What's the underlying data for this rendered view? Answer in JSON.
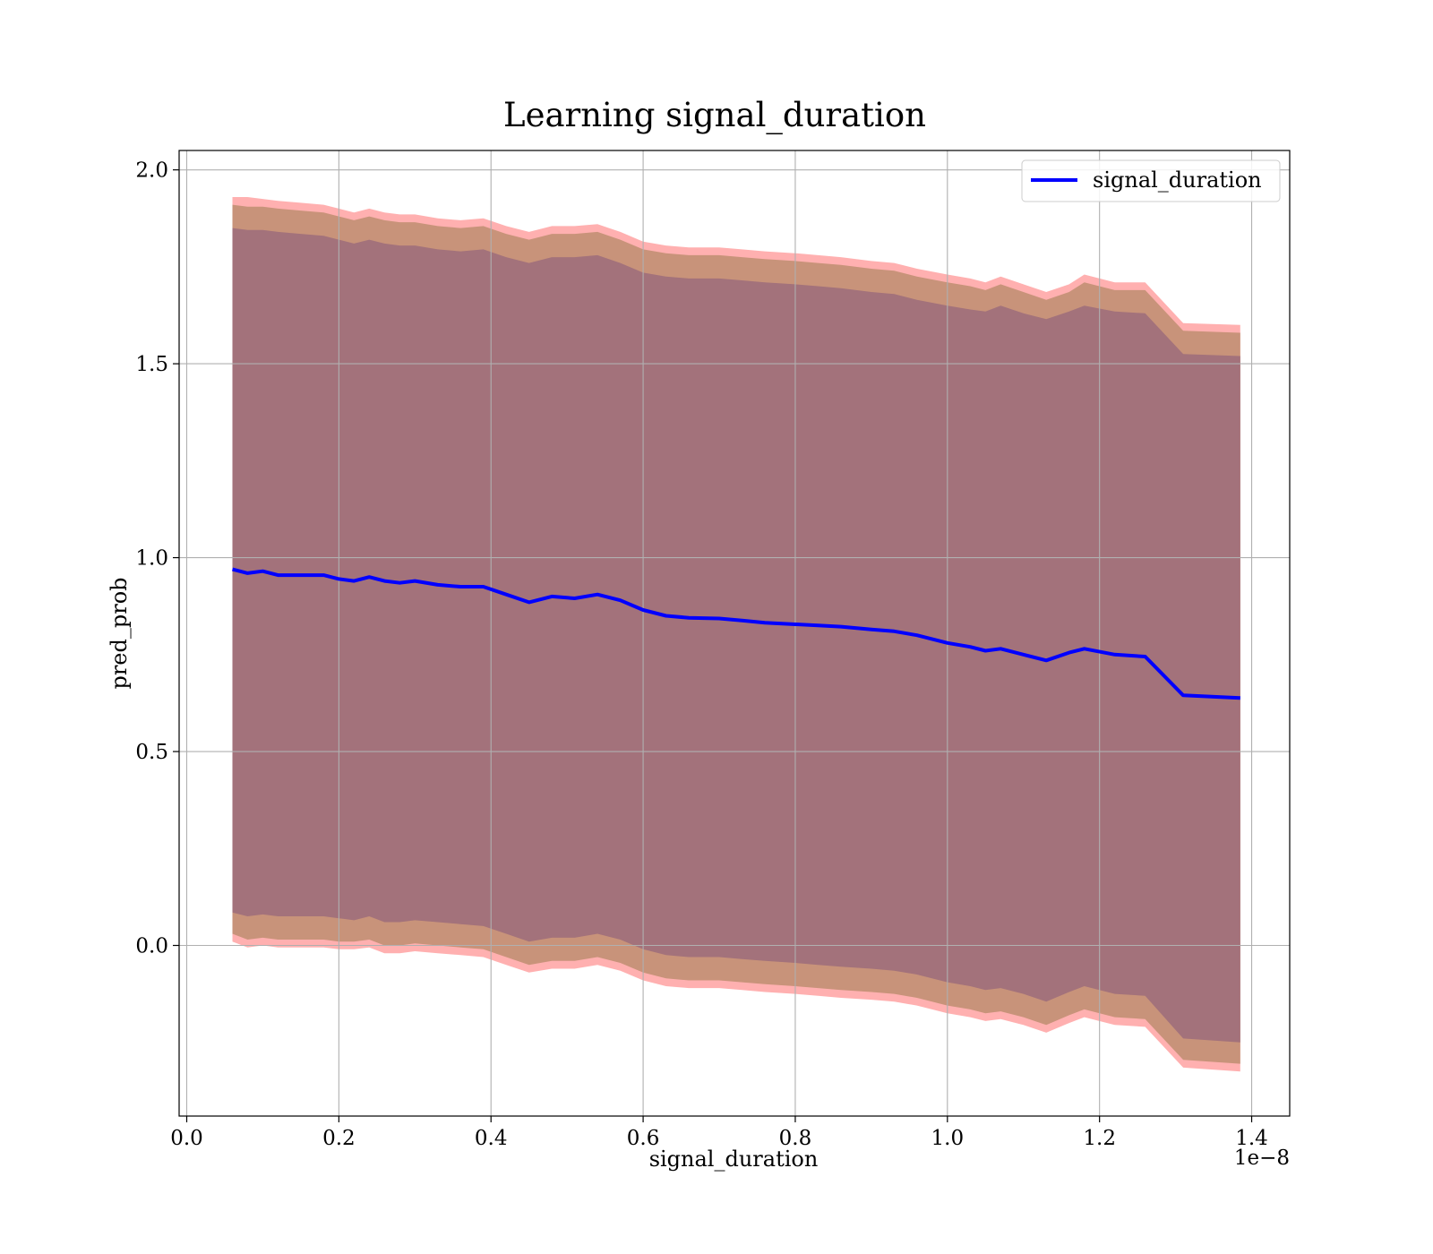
{
  "chart_data": {
    "type": "line",
    "title": "Learning signal_duration",
    "xlabel": "signal_duration",
    "ylabel": "pred_prob",
    "x_offset_label": "1e−8",
    "xlim": [
      -0.01,
      1.45
    ],
    "ylim": [
      -0.44,
      2.05
    ],
    "x_ticks": [
      0.0,
      0.2,
      0.4,
      0.6,
      0.8,
      1.0,
      1.2,
      1.4
    ],
    "x_tick_labels": [
      "0.0",
      "0.2",
      "0.4",
      "0.6",
      "0.8",
      "1.0",
      "1.2",
      "1.4"
    ],
    "y_ticks": [
      0.0,
      0.5,
      1.0,
      1.5,
      2.0
    ],
    "y_tick_labels": [
      "0.0",
      "0.5",
      "1.0",
      "1.5",
      "2.0"
    ],
    "grid": true,
    "legend_position": "top-right",
    "colors": {
      "line": "#0000ff",
      "inner_band": "#a3727b",
      "middle_band": "#c8937a",
      "outer_band": "#ffb0b0",
      "grid": "#b0b0b0"
    },
    "series": [
      {
        "name": "signal_duration",
        "x": [
          0.06,
          0.08,
          0.1,
          0.12,
          0.15,
          0.18,
          0.2,
          0.22,
          0.24,
          0.26,
          0.28,
          0.3,
          0.33,
          0.36,
          0.39,
          0.42,
          0.45,
          0.48,
          0.51,
          0.54,
          0.57,
          0.6,
          0.63,
          0.66,
          0.7,
          0.73,
          0.76,
          0.8,
          0.83,
          0.86,
          0.9,
          0.93,
          0.96,
          1.0,
          1.03,
          1.05,
          1.07,
          1.1,
          1.13,
          1.16,
          1.18,
          1.22,
          1.26,
          1.31,
          1.385
        ],
        "y": [
          0.97,
          0.96,
          0.965,
          0.955,
          0.955,
          0.955,
          0.945,
          0.94,
          0.95,
          0.94,
          0.935,
          0.94,
          0.93,
          0.925,
          0.925,
          0.905,
          0.885,
          0.9,
          0.895,
          0.905,
          0.89,
          0.865,
          0.85,
          0.845,
          0.843,
          0.838,
          0.832,
          0.828,
          0.825,
          0.822,
          0.815,
          0.81,
          0.8,
          0.78,
          0.77,
          0.76,
          0.765,
          0.75,
          0.735,
          0.755,
          0.765,
          0.75,
          0.745,
          0.645,
          0.638
        ]
      }
    ],
    "bands": [
      {
        "level": "outer",
        "upper": [
          1.93,
          1.93,
          1.925,
          1.92,
          1.915,
          1.91,
          1.9,
          1.89,
          1.9,
          1.89,
          1.885,
          1.885,
          1.875,
          1.87,
          1.875,
          1.855,
          1.84,
          1.855,
          1.855,
          1.86,
          1.84,
          1.815,
          1.805,
          1.8,
          1.8,
          1.795,
          1.79,
          1.785,
          1.78,
          1.775,
          1.765,
          1.76,
          1.745,
          1.73,
          1.72,
          1.71,
          1.725,
          1.705,
          1.685,
          1.705,
          1.73,
          1.71,
          1.71,
          1.605,
          1.6
        ],
        "lower": [
          0.01,
          -0.005,
          0.0,
          -0.005,
          -0.005,
          -0.005,
          -0.01,
          -0.01,
          -0.005,
          -0.02,
          -0.02,
          -0.015,
          -0.02,
          -0.025,
          -0.03,
          -0.05,
          -0.07,
          -0.06,
          -0.06,
          -0.05,
          -0.065,
          -0.09,
          -0.105,
          -0.11,
          -0.11,
          -0.115,
          -0.12,
          -0.125,
          -0.13,
          -0.135,
          -0.14,
          -0.145,
          -0.155,
          -0.175,
          -0.185,
          -0.195,
          -0.19,
          -0.205,
          -0.225,
          -0.2,
          -0.185,
          -0.205,
          -0.21,
          -0.315,
          -0.325
        ]
      },
      {
        "level": "middle",
        "upper": [
          1.91,
          1.905,
          1.905,
          1.9,
          1.895,
          1.89,
          1.88,
          1.87,
          1.88,
          1.87,
          1.865,
          1.865,
          1.855,
          1.85,
          1.855,
          1.835,
          1.82,
          1.835,
          1.835,
          1.84,
          1.82,
          1.795,
          1.785,
          1.78,
          1.78,
          1.775,
          1.77,
          1.765,
          1.76,
          1.755,
          1.745,
          1.74,
          1.725,
          1.71,
          1.7,
          1.69,
          1.705,
          1.685,
          1.665,
          1.685,
          1.71,
          1.69,
          1.69,
          1.585,
          1.58
        ],
        "lower": [
          0.03,
          0.015,
          0.02,
          0.015,
          0.015,
          0.015,
          0.01,
          0.01,
          0.015,
          0.0,
          0.0,
          0.005,
          0.0,
          -0.005,
          -0.01,
          -0.03,
          -0.05,
          -0.04,
          -0.04,
          -0.03,
          -0.045,
          -0.07,
          -0.085,
          -0.09,
          -0.09,
          -0.095,
          -0.1,
          -0.105,
          -0.11,
          -0.115,
          -0.12,
          -0.125,
          -0.135,
          -0.155,
          -0.165,
          -0.175,
          -0.17,
          -0.185,
          -0.205,
          -0.18,
          -0.165,
          -0.185,
          -0.19,
          -0.295,
          -0.305
        ]
      },
      {
        "level": "inner",
        "upper": [
          1.85,
          1.845,
          1.845,
          1.84,
          1.835,
          1.83,
          1.82,
          1.81,
          1.82,
          1.81,
          1.805,
          1.805,
          1.795,
          1.79,
          1.795,
          1.775,
          1.76,
          1.775,
          1.775,
          1.78,
          1.76,
          1.735,
          1.725,
          1.72,
          1.72,
          1.715,
          1.71,
          1.705,
          1.7,
          1.695,
          1.685,
          1.68,
          1.665,
          1.65,
          1.64,
          1.635,
          1.65,
          1.63,
          1.615,
          1.635,
          1.65,
          1.635,
          1.63,
          1.525,
          1.52
        ],
        "lower": [
          0.085,
          0.075,
          0.08,
          0.075,
          0.075,
          0.075,
          0.07,
          0.065,
          0.075,
          0.06,
          0.06,
          0.065,
          0.06,
          0.055,
          0.05,
          0.03,
          0.01,
          0.02,
          0.02,
          0.03,
          0.015,
          -0.01,
          -0.025,
          -0.03,
          -0.03,
          -0.035,
          -0.04,
          -0.045,
          -0.05,
          -0.055,
          -0.06,
          -0.065,
          -0.075,
          -0.095,
          -0.105,
          -0.115,
          -0.11,
          -0.125,
          -0.145,
          -0.12,
          -0.105,
          -0.125,
          -0.13,
          -0.24,
          -0.25
        ]
      }
    ]
  }
}
